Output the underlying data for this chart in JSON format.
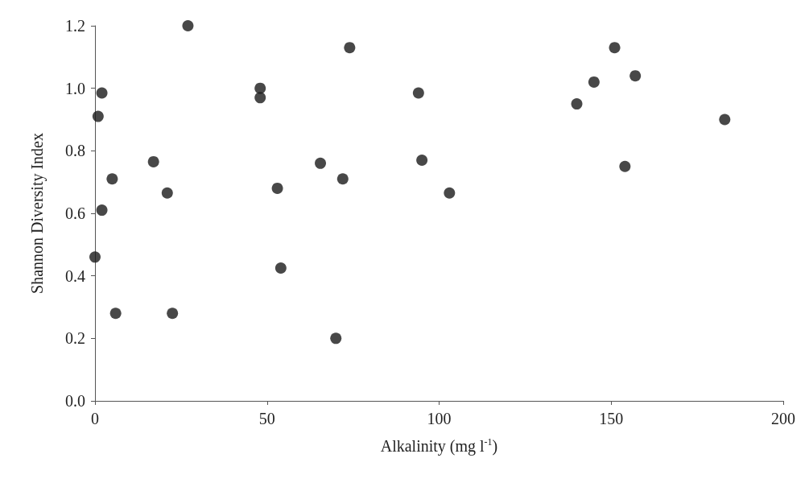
{
  "chart_data": {
    "type": "scatter",
    "xlabel": "Alkalinity (mg l$^{-1}$)",
    "ylabel": "Shannon Diversity Index",
    "x": [
      0,
      0.9,
      2,
      2,
      5,
      6,
      17,
      21,
      22.5,
      27,
      48,
      48,
      53,
      54,
      65.5,
      70,
      72,
      74,
      94,
      95,
      103,
      140,
      145,
      151,
      154,
      157,
      183
    ],
    "series": [
      {
        "color": "#1a1a1a",
        "values": [
          0.46,
          0.91,
          0.985,
          0.61,
          0.71,
          0.28,
          0.765,
          0.665,
          0.28,
          1.2,
          1.0,
          0.97,
          0.68,
          0.425,
          0.76,
          0.2,
          0.71,
          1.13,
          0.985,
          0.77,
          0.665,
          0.95,
          1.02,
          1.13,
          0.75,
          1.04,
          0.9
        ]
      }
    ],
    "xlim": [
      0,
      200
    ],
    "xticks": [
      0,
      50,
      100,
      150,
      200
    ],
    "ylim": [
      0,
      1.2
    ],
    "yticks": [
      {
        "value": 0,
        "label": "0.0"
      },
      {
        "value": 0.2,
        "label": "0.2"
      },
      {
        "value": 0.4,
        "label": "0.4"
      },
      {
        "value": 0.6,
        "label": "0.6"
      },
      {
        "value": 0.8,
        "label": "0.8"
      },
      {
        "value": 1,
        "label": "1.0"
      },
      {
        "value": 1.2,
        "label": "1.2"
      }
    ],
    "grid": false,
    "marker": "circle"
  }
}
